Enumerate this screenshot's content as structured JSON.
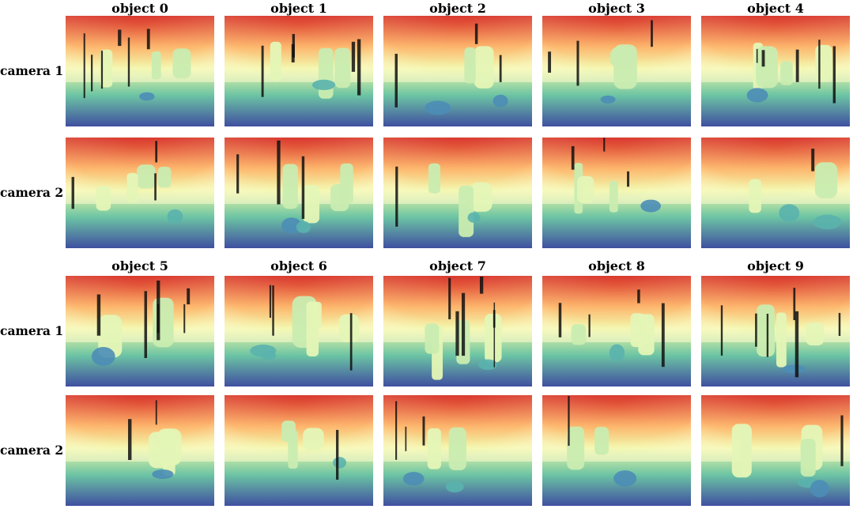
{
  "panels": [
    {
      "columns": [
        "object 0",
        "object 1",
        "object 2",
        "object 3",
        "object 4"
      ],
      "rows": [
        "camera 1",
        "camera 2"
      ]
    },
    {
      "columns": [
        "object 5",
        "object 6",
        "object 7",
        "object 8",
        "object 9"
      ],
      "rows": [
        "camera 1",
        "camera 2"
      ]
    }
  ],
  "colormap": {
    "name": "Spectral (depth)",
    "near": "#3f4fa0",
    "mid_near": "#6cc4a4",
    "mid": "#eef7a6",
    "mid_far": "#fdae61",
    "far": "#d73027"
  }
}
